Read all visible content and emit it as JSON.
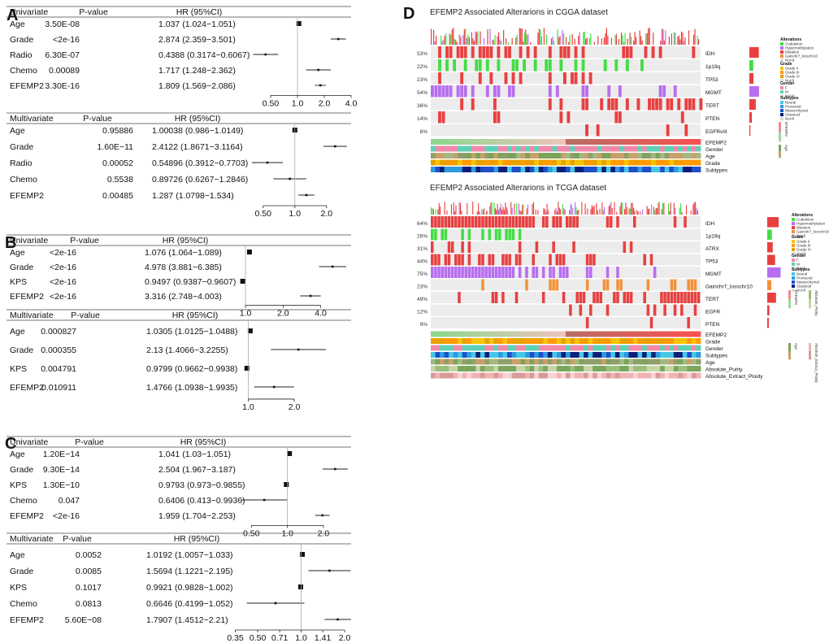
{
  "panels": {
    "A": "A",
    "B": "B",
    "C": "C",
    "D": "D"
  },
  "headers": {
    "p": "P-value",
    "hr_a": "HR (95%CI)",
    "hr_bc": "HR (95%CI)"
  },
  "chart_data": [
    {
      "type": "forest",
      "panel": "A",
      "section": "Univariate",
      "title": "Univariate",
      "rows": [
        {
          "label": "Age",
          "p": "3.50E-08",
          "hr_text": "1.037 (1.024−1.051)",
          "hr": 1.037,
          "lo": 1.024,
          "hi": 1.051
        },
        {
          "label": "Grade",
          "p": "<2e-16",
          "hr_text": "2.874 (2.359−3.501)",
          "hr": 2.874,
          "lo": 2.359,
          "hi": 3.501
        },
        {
          "label": "Radio",
          "p": "6.30E-07",
          "hr_text": "0.4388 (0.3174−0.6067)",
          "hr": 0.4388,
          "lo": 0.3174,
          "hi": 0.6067
        },
        {
          "label": "Chemo",
          "p": "0.00089",
          "hr_text": "1.717 (1.248−2.362)",
          "hr": 1.717,
          "lo": 1.248,
          "hi": 2.362
        },
        {
          "label": "EFEMP2",
          "p": "3.30E-16",
          "hr_text": "1.809 (1.569−2.086)",
          "hr": 1.809,
          "lo": 1.569,
          "hi": 2.086
        }
      ],
      "ticks": [
        "0.50",
        "1.0",
        "2.0",
        "4.0"
      ],
      "tick_values": [
        0.5,
        1,
        2,
        4
      ],
      "xlim": [
        0.25,
        4.0
      ]
    },
    {
      "type": "forest",
      "panel": "A",
      "section": "Multivariate",
      "title": "Multivariate",
      "rows": [
        {
          "label": "Age",
          "p": "0.95886",
          "hr_text": "1.00038 (0.986−1.0149)",
          "hr": 1.00038,
          "lo": 0.986,
          "hi": 1.0149
        },
        {
          "label": "Grade",
          "p": "1.60E−11",
          "hr_text": "2.4122 (1.8671−3.1164)",
          "hr": 2.4122,
          "lo": 1.8671,
          "hi": 3.1164
        },
        {
          "label": "Radio",
          "p": "0.00052",
          "hr_text": "0.54896 (0.3912−0.7703)",
          "hr": 0.54896,
          "lo": 0.3912,
          "hi": 0.7703
        },
        {
          "label": "Chemo",
          "p": "0.5538",
          "hr_text": "0.89726 (0.6267−1.2846)",
          "hr": 0.89726,
          "lo": 0.6267,
          "hi": 1.2846
        },
        {
          "label": "EFEMP2",
          "p": "0.00485",
          "hr_text": "1.287 (1.0798−1.534)",
          "hr": 1.287,
          "lo": 1.0798,
          "hi": 1.534
        }
      ],
      "ticks": [
        "0.50",
        "1.0",
        "2.0"
      ],
      "tick_values": [
        0.5,
        1,
        2
      ],
      "xlim": [
        0.3,
        3.3
      ]
    },
    {
      "type": "forest",
      "panel": "B",
      "section": "Univariate",
      "title": "Univariate",
      "rows": [
        {
          "label": "Age",
          "p": "<2e-16",
          "hr_text": "1.076 (1.064−1.089)",
          "hr": 1.076,
          "lo": 1.064,
          "hi": 1.089
        },
        {
          "label": "Grade",
          "p": "<2e-16",
          "hr_text": "4.978 (3.881−6.385)",
          "hr": 4.978,
          "lo": 3.881,
          "hi": 6.385
        },
        {
          "label": "KPS",
          "p": "<2e-16",
          "hr_text": "0.9497 (0.9387−0.9607)",
          "hr": 0.9497,
          "lo": 0.9387,
          "hi": 0.9607
        },
        {
          "label": "EFEMP2",
          "p": "<2e-16",
          "hr_text": "3.316 (2.748−4.003)",
          "hr": 3.316,
          "lo": 2.748,
          "hi": 4.003
        }
      ],
      "ticks": [
        "1.0",
        "2.0",
        "4.0"
      ],
      "tick_values": [
        1,
        2,
        4
      ],
      "xlim": [
        0.9,
        6.8
      ]
    },
    {
      "type": "forest",
      "panel": "B",
      "section": "Multivariate",
      "title": "Multivariate",
      "rows": [
        {
          "label": "Age",
          "p": "0.000827",
          "hr_text": "1.0305 (1.0125−1.0488)",
          "hr": 1.0305,
          "lo": 1.0125,
          "hi": 1.0488
        },
        {
          "label": "Grade",
          "p": "0.000355",
          "hr_text": "2.13 (1.4066−3.2255)",
          "hr": 2.13,
          "lo": 1.4066,
          "hi": 3.2255
        },
        {
          "label": "KPS",
          "p": "0.004791",
          "hr_text": "0.9799 (0.9662−0.9938)",
          "hr": 0.9799,
          "lo": 0.9662,
          "hi": 0.9938
        },
        {
          "label": "EFEMP2",
          "p": "0.010911",
          "hr_text": "1.4766 (1.0938−1.9935)",
          "hr": 1.4766,
          "lo": 1.0938,
          "hi": 1.9935
        }
      ],
      "ticks": [
        "1.0",
        "2.0"
      ],
      "tick_values": [
        1,
        2
      ],
      "xlim": [
        0.88,
        3.6
      ]
    },
    {
      "type": "forest",
      "panel": "C",
      "section": "Univariate",
      "title": "Univariate",
      "rows": [
        {
          "label": "Age",
          "p": "1.20E−14",
          "hr_text": "1.041 (1.03−1.051)",
          "hr": 1.041,
          "lo": 1.03,
          "hi": 1.051
        },
        {
          "label": "Grade",
          "p": "9.30E−14",
          "hr_text": "2.504 (1.967−3.187)",
          "hr": 2.504,
          "lo": 1.967,
          "hi": 3.187
        },
        {
          "label": "KPS",
          "p": "1.30E−10",
          "hr_text": "0.9793 (0.973−0.9855)",
          "hr": 0.9793,
          "lo": 0.973,
          "hi": 0.9855
        },
        {
          "label": "Chemo",
          "p": "0.047",
          "hr_text": "0.6406 (0.413−0.9936)",
          "hr": 0.6406,
          "lo": 0.413,
          "hi": 0.9936
        },
        {
          "label": "EFEMP2",
          "p": "<2e-16",
          "hr_text": "1.959 (1.704−2.253)",
          "hr": 1.959,
          "lo": 1.704,
          "hi": 2.253
        }
      ],
      "ticks": [
        "0.50",
        "1.0",
        "2.0"
      ],
      "tick_values": [
        0.5,
        1,
        2
      ],
      "xlim": [
        0.4,
        3.3
      ]
    },
    {
      "type": "forest",
      "panel": "C",
      "section": "Multivariate",
      "title": "Multivariate",
      "rows": [
        {
          "label": "Age",
          "p": "0.0052",
          "hr_text": "1.0192 (1.0057−1.033)",
          "hr": 1.0192,
          "lo": 1.0057,
          "hi": 1.033
        },
        {
          "label": "Grade",
          "p": "0.0085",
          "hr_text": "1.5694 (1.1221−2.195)",
          "hr": 1.5694,
          "lo": 1.1221,
          "hi": 2.195
        },
        {
          "label": "KPS",
          "p": "0.1017",
          "hr_text": "0.9921 (0.9828−1.002)",
          "hr": 0.9921,
          "lo": 0.9828,
          "hi": 1.002
        },
        {
          "label": "Chemo",
          "p": "0.0813",
          "hr_text": "0.6646 (0.4199−1.052)",
          "hr": 0.6646,
          "lo": 0.4199,
          "hi": 1.052
        },
        {
          "label": "EFEMP2",
          "p": "5.60E−08",
          "hr_text": "1.7907 (1.4512−2.21)",
          "hr": 1.7907,
          "lo": 1.4512,
          "hi": 2.21
        }
      ],
      "ticks": [
        "0.35",
        "0.50",
        "0.71",
        "1.0",
        "1.41",
        "2.0"
      ],
      "tick_values": [
        0.35,
        0.5,
        0.71,
        1,
        1.41,
        2
      ],
      "xlim": [
        0.33,
        2.05
      ]
    },
    {
      "type": "heatmap",
      "panel": "D",
      "title": "EFEMP2 Associated Alterarions in CGGA dataset",
      "rows": [
        "IDH",
        "1p19q",
        "TP53",
        "MGMT",
        "TERT",
        "PTEN",
        "EGFRvIII"
      ],
      "percents": [
        "53%",
        "22%",
        "23%",
        "54%",
        "36%",
        "14%",
        "6%"
      ],
      "fractions": [
        0.53,
        0.22,
        0.23,
        0.54,
        0.36,
        0.14,
        0.06
      ],
      "annotations": [
        "EFEMP2",
        "Gender",
        "Age",
        "Grade",
        "Subtypes"
      ]
    },
    {
      "type": "heatmap",
      "panel": "D",
      "title": "EFEMP2 Associated Alterarions in TCGA dataset",
      "rows": [
        "IDH",
        "1p19q",
        "ATRX",
        "TP53",
        "MGMT",
        "Gainchr7_losschr10",
        "TERT",
        "EGFR",
        "PTEN"
      ],
      "percents": [
        "64%",
        "26%",
        "31%",
        "44%",
        "75%",
        "23%",
        "49%",
        "12%",
        "9%"
      ],
      "fractions": [
        0.64,
        0.26,
        0.31,
        0.44,
        0.75,
        0.23,
        0.49,
        0.12,
        0.09
      ],
      "annotations": [
        "EFEMP2",
        "Grade",
        "Gender",
        "Subtypes",
        "Age",
        "Absolute_Purity",
        "Absolute_Extract_Ploidy"
      ]
    }
  ],
  "legend": {
    "alterations_title": "Alterations",
    "alterations": [
      "Codeletion",
      "Hypermethylation",
      "Mutation",
      "Gainchr7_losschr10",
      "NoAlt"
    ],
    "grade_title": "Grade",
    "grade": [
      "Grade II",
      "Grade III",
      "Grade IV",
      "NoAlt"
    ],
    "gender_title": "Gender",
    "gender": [
      "F",
      "M",
      "NoAlt"
    ],
    "subtypes_title": "Subtypes",
    "subtypes": [
      "Neural",
      "Proneural",
      "Mesenchymal",
      "Classical",
      "NoAlt"
    ],
    "efemp2_title": "EFEMP2",
    "age_title": "Age",
    "purity_title": "Absolute_Purity",
    "ploidy_title": "Absolute_Extract_Ploidy"
  },
  "colors": {
    "mutation": "#e84040",
    "codeletion": "#44dd44",
    "hyper": "#b86ef0",
    "gain": "#f2923a",
    "noalt": "#dcdcdc",
    "rowbg": "#ececec"
  }
}
